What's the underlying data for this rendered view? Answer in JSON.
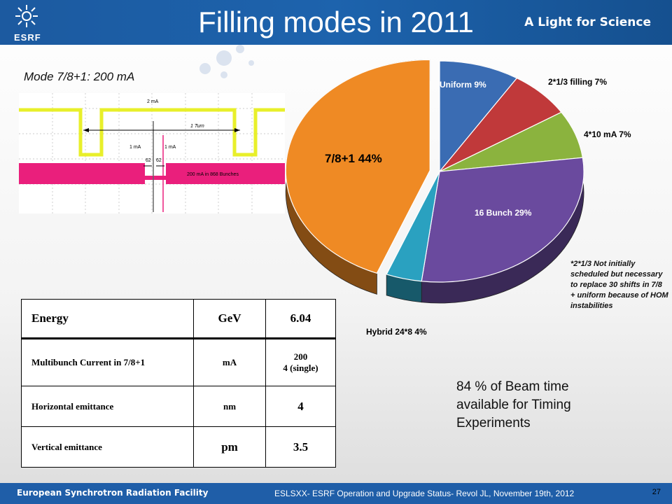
{
  "header": {
    "title": "Filling modes in 2011",
    "tagline": "A Light for Science",
    "logo_text": "ESRF"
  },
  "mode_label": "Mode 7/8+1: 200 mA",
  "scope": {
    "labels": {
      "turn": "1 Turn",
      "top_current": "2 mA",
      "left_current": "1 mA",
      "right_current": "1 mA",
      "gap_left": "62",
      "gap_right": "62",
      "bunches": "200 mA in 868 Bunches"
    }
  },
  "chart_data": {
    "type": "pie",
    "slices": [
      {
        "label": "Uniform 9%",
        "value": 9,
        "color": "#3a6cb3"
      },
      {
        "label": "2*1/3 filling 7%",
        "value": 7,
        "color": "#c0393a"
      },
      {
        "label": "4*10 mA 7%",
        "value": 7,
        "color": "#8bb33e"
      },
      {
        "label": "16 Bunch 29%",
        "value": 29,
        "color": "#6a4a9e"
      },
      {
        "label": "Hybrid 24*8 4%",
        "value": 4,
        "color": "#2aa1c0"
      },
      {
        "label": "7/8+1 44%",
        "value": 44,
        "color": "#ef8a24",
        "exploded": true
      }
    ]
  },
  "table": {
    "rows": [
      [
        "Energy",
        "GeV",
        "6.04"
      ],
      [
        "Multibunch Current in 7/8+1",
        "mA",
        "200\n4 (single)"
      ],
      [
        "Horizontal emittance",
        "nm",
        "4"
      ],
      [
        "Vertical emittance",
        "pm",
        "3.5"
      ]
    ]
  },
  "note": "*2*1/3 Not initially scheduled but necessary to replace 30 shifts in 7/8 + uniform because of HOM instabilities",
  "summary": "84 % of Beam time available for Timing Experiments",
  "footer": {
    "org": "European Synchrotron Radiation Facility",
    "info": "ESLSXX- ESRF Operation and Upgrade Status- Revol JL, November 19th, 2012",
    "page": "27"
  }
}
